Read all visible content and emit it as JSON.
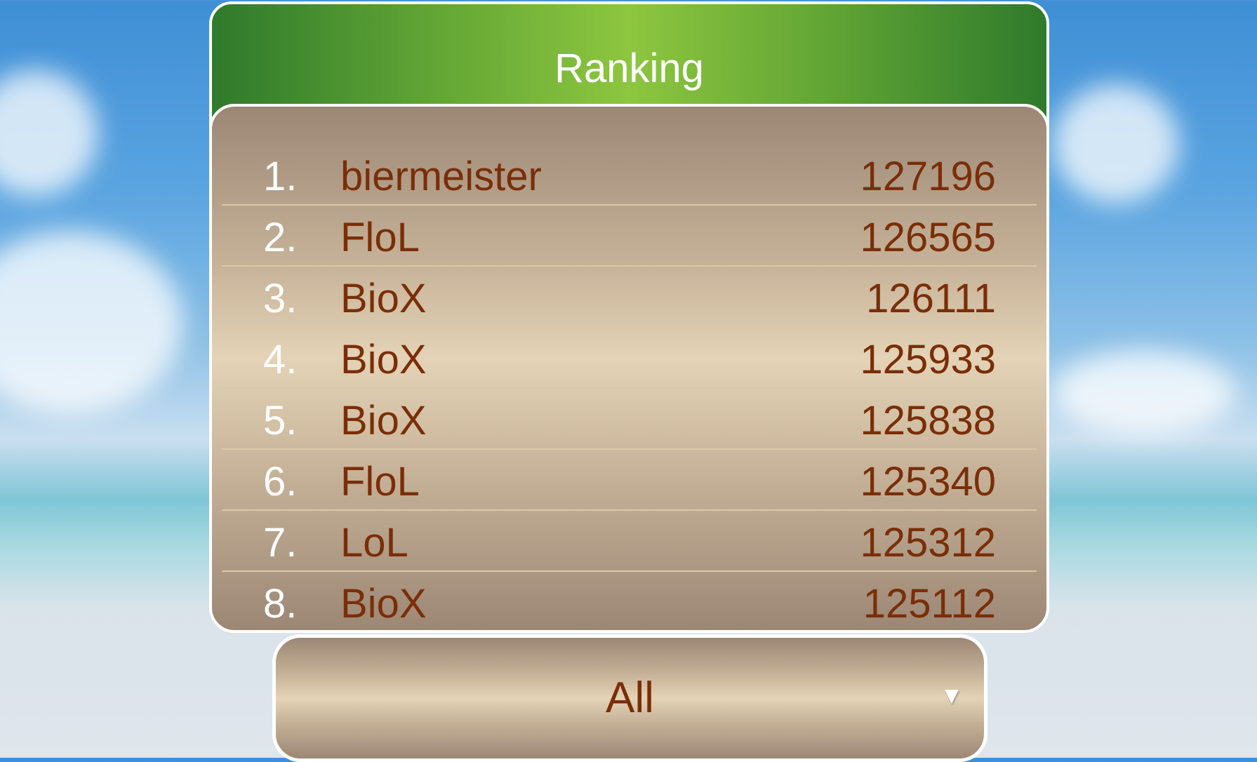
{
  "header": {
    "title": "Ranking"
  },
  "ranking": [
    {
      "rank": "1.",
      "name": "biermeister",
      "score": "127196"
    },
    {
      "rank": "2.",
      "name": "FloL",
      "score": "126565"
    },
    {
      "rank": "3.",
      "name": "BioX",
      "score": "126111"
    },
    {
      "rank": "4.",
      "name": "BioX",
      "score": "125933"
    },
    {
      "rank": "5.",
      "name": "BioX",
      "score": "125838"
    },
    {
      "rank": "6.",
      "name": "FloL",
      "score": "125340"
    },
    {
      "rank": "7.",
      "name": "LoL",
      "score": "125312"
    },
    {
      "rank": "8.",
      "name": "BioX",
      "score": "125112"
    }
  ],
  "filter": {
    "selected": "All",
    "icon": "triangle-down-icon"
  },
  "colors": {
    "header_green": "#8dc63f",
    "text_brown": "#7a2e08",
    "panel_beige": "#e4d3b6"
  }
}
